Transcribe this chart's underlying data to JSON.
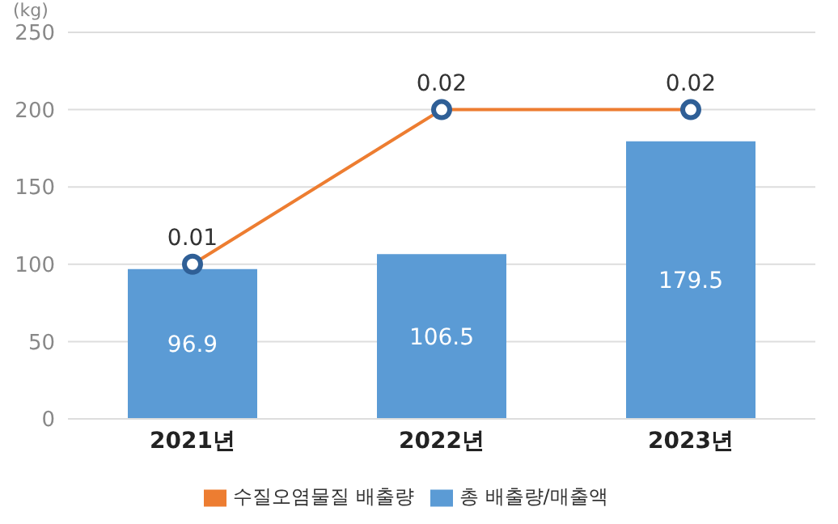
{
  "chart_data": {
    "type": "bar",
    "ylabel": "(kg)",
    "categories": [
      "2021년",
      "2022년",
      "2023년"
    ],
    "series": [
      {
        "name": "수질오염물질 배출량",
        "type": "line",
        "axis": "y2",
        "color": "#ed7d31",
        "values": [
          0.01,
          0.02,
          0.02
        ]
      },
      {
        "name": "총 배출량/매출액",
        "color": "#5b9bd5",
        "values": [
          96.9,
          106.5,
          179.5
        ]
      }
    ],
    "ylim": [
      0,
      250
    ],
    "yticks": [
      0,
      50,
      100,
      150,
      200,
      250
    ],
    "y2lim": [
      0,
      0.025
    ],
    "grid": "y",
    "legend": "bottom",
    "marker": "circle",
    "data_labels": true
  }
}
